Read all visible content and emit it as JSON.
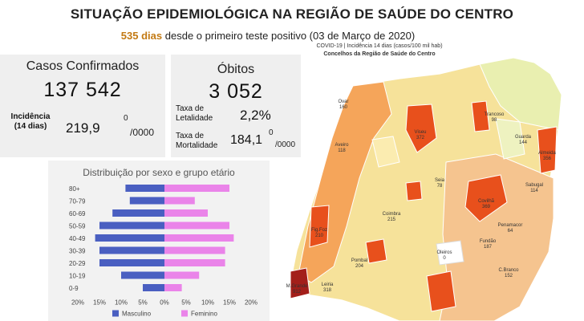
{
  "header": {
    "title": "SITUAÇÃO EPIDEMIOLÓGICA NA REGIÃO DE SAÚDE DO CENTRO",
    "days_highlight": "535 dias",
    "subtitle_rest": "desde o primeiro teste positivo (03 de Março de 2020)"
  },
  "cases": {
    "label": "Casos Confirmados",
    "value": "137 542",
    "incidence_label_line1": "Incidência",
    "incidence_label_line2": "(14 dias)",
    "incidence_value": "219,9",
    "unit_sup": "0",
    "unit_base": "/0000"
  },
  "deaths": {
    "label": "Óbitos",
    "value": "3 052",
    "lethality_label_line1": "Taxa de",
    "lethality_label_line2": "Letalidade",
    "lethality_value": "2,2%",
    "mortality_label_line1": "Taxa de",
    "mortality_label_line2": "Mortalidade",
    "mortality_value": "184,1",
    "unit_sup": "0",
    "unit_base": "/0000"
  },
  "chart_data": {
    "type": "bar",
    "orientation": "horizontal-pyramid",
    "title": "Distribuição por sexo e grupo etário",
    "categories": [
      "80+",
      "70-79",
      "60-69",
      "50-59",
      "40-49",
      "30-39",
      "20-29",
      "10-19",
      "0-9"
    ],
    "series": [
      {
        "name": "Masculino",
        "color": "#4a5fc1",
        "values": [
          9,
          8,
          12,
          15,
          16,
          15,
          15,
          10,
          5
        ]
      },
      {
        "name": "Feminino",
        "color": "#ea84e9",
        "values": [
          15,
          7,
          10,
          15,
          16,
          14,
          14,
          8,
          4
        ]
      }
    ],
    "xlim": [
      -20,
      20
    ],
    "xticks": [
      "20%",
      "15%",
      "10%",
      "5%",
      "0%",
      "5%",
      "10%",
      "15%",
      "20%"
    ],
    "legend_position": "bottom",
    "grid": false
  },
  "map": {
    "title_line1": "COVID-19 | Incidência 14 dias (casos/100 mil hab)",
    "title_line2": "Concelhos da Região de Saúde do Centro",
    "regions": [
      {
        "name": "Ovar",
        "value": "160"
      },
      {
        "name": "Viseu",
        "value": "372"
      },
      {
        "name": "Guarda",
        "value": "144"
      },
      {
        "name": "Aveiro",
        "value": "118"
      },
      {
        "name": "Coimbra",
        "value": "215"
      },
      {
        "name": "Covilhã",
        "value": "369"
      },
      {
        "name": "Almeida",
        "value": "356"
      },
      {
        "name": "Fig.Foz",
        "value": "210"
      },
      {
        "name": "Pombal",
        "value": "204"
      },
      {
        "name": "Leiria",
        "value": "318"
      },
      {
        "name": "C.Branco",
        "value": "152"
      },
      {
        "name": "Sabugal",
        "value": "114"
      },
      {
        "name": "Oleiros",
        "value": "0"
      },
      {
        "name": "M.Grande",
        "value": "912"
      },
      {
        "name": "Penamacor",
        "value": "64"
      },
      {
        "name": "Trancoso",
        "value": "98"
      },
      {
        "name": "Seia",
        "value": "78"
      },
      {
        "name": "Fundão",
        "value": "187"
      }
    ]
  }
}
